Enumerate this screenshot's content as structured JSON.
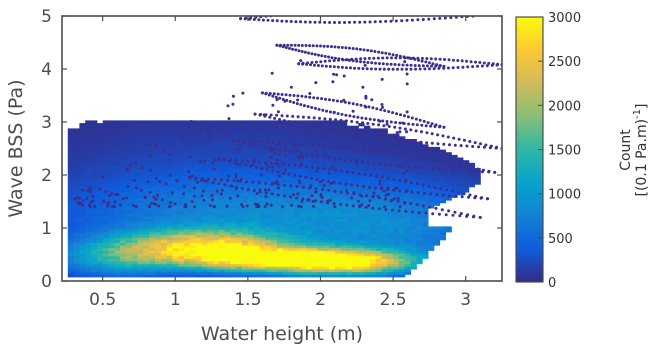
{
  "chart_data": {
    "type": "heatmap",
    "xlabel": "Water height (m)",
    "ylabel": "Wave BSS (Pa)",
    "xlim": [
      0.22,
      3.25
    ],
    "ylim": [
      0,
      5
    ],
    "x_ticks": [
      "0.5",
      "1",
      "1.5",
      "2",
      "2.5",
      "3"
    ],
    "x_tick_values": [
      0.5,
      1,
      1.5,
      2,
      2.5,
      3
    ],
    "y_ticks": [
      "0",
      "1",
      "2",
      "3",
      "4",
      "5"
    ],
    "y_tick_values": [
      0,
      1,
      2,
      3,
      4,
      5
    ],
    "grid": false,
    "colorbar": {
      "label_line1": "Count",
      "label_line2_prefix": "[(0.1 Pa.m)",
      "label_line2_sup": "-1",
      "label_line2_suffix": "]",
      "ticks": [
        "0",
        "500",
        "1000",
        "1500",
        "2000",
        "2500",
        "3000"
      ],
      "tick_values": [
        0,
        500,
        1000,
        1500,
        2000,
        2500,
        3000
      ],
      "range": [
        0,
        3000
      ],
      "colormap": [
        "#352a87",
        "#0f5cdd",
        "#1481d6",
        "#06a4ca",
        "#2eb7a4",
        "#87bf77",
        "#d1bb59",
        "#fec832",
        "#f9fb0e"
      ]
    },
    "density_blobs": [
      {
        "x": 1.7,
        "y": 0.42,
        "sx": 0.48,
        "sy": 0.16,
        "count": 2950
      },
      {
        "x": 1.2,
        "y": 0.7,
        "sx": 0.38,
        "sy": 0.2,
        "count": 2200
      },
      {
        "x": 2.2,
        "y": 0.35,
        "sx": 0.3,
        "sy": 0.15,
        "count": 1800
      },
      {
        "x": 0.6,
        "y": 0.45,
        "sx": 0.3,
        "sy": 0.25,
        "count": 1100
      },
      {
        "x": 1.5,
        "y": 1.25,
        "sx": 0.9,
        "sy": 0.5,
        "count": 750
      },
      {
        "x": 2.6,
        "y": 0.9,
        "sx": 0.5,
        "sy": 0.6,
        "count": 500
      },
      {
        "x": 1.3,
        "y": 2.2,
        "sx": 0.9,
        "sy": 0.7,
        "count": 180
      }
    ],
    "loops": [
      {
        "x0": 1.45,
        "y0": 4.95,
        "x1": 3.05,
        "y1": 5.0
      },
      {
        "x0": 1.7,
        "y0": 4.45,
        "x1": 2.85,
        "y1": 4.05
      },
      {
        "x0": 1.85,
        "y0": 4.1,
        "x1": 3.25,
        "y1": 4.08
      },
      {
        "x0": 1.6,
        "y0": 3.55,
        "x1": 2.85,
        "y1": 2.9
      },
      {
        "x0": 1.55,
        "y0": 3.15,
        "x1": 3.25,
        "y1": 2.5
      },
      {
        "x0": 1.4,
        "y0": 2.65,
        "x1": 3.2,
        "y1": 2.05
      },
      {
        "x0": 1.3,
        "y0": 2.3,
        "x1": 3.15,
        "y1": 1.55
      },
      {
        "x0": 1.1,
        "y0": 1.95,
        "x1": 3.1,
        "y1": 1.2
      }
    ]
  }
}
